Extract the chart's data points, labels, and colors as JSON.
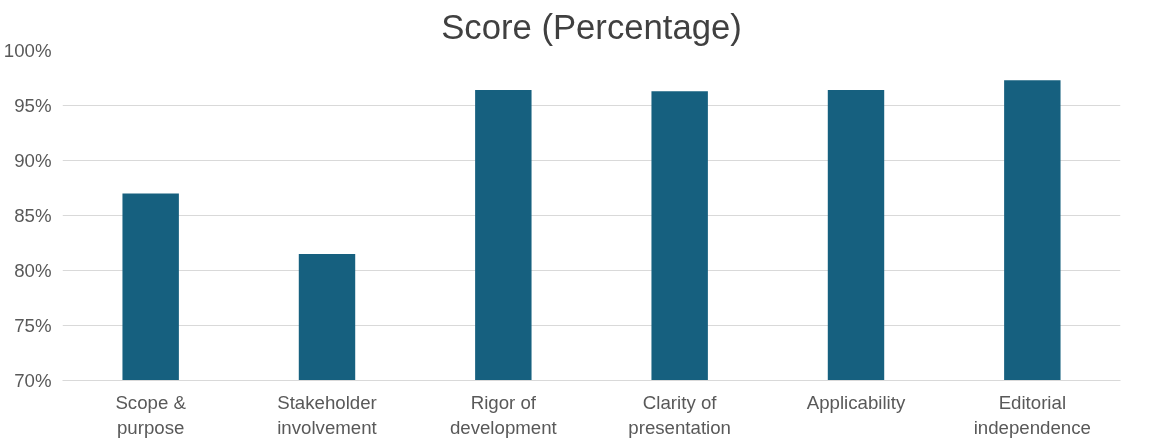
{
  "chart_data": {
    "type": "bar",
    "title": "Score (Percentage)",
    "categories": [
      "Scope & purpose",
      "Stakeholder involvement",
      "Rigor of development",
      "Clarity of presentation",
      "Applicability",
      "Editorial independence"
    ],
    "values": [
      87.0,
      81.5,
      96.4,
      96.3,
      96.4,
      97.3
    ],
    "color": "#16607f",
    "ylim": [
      70,
      100
    ],
    "yticks": [
      {
        "value": 70,
        "label": "70%"
      },
      {
        "value": 75,
        "label": "75%"
      },
      {
        "value": 80,
        "label": "80%"
      },
      {
        "value": 85,
        "label": "85%"
      },
      {
        "value": 90,
        "label": "90%"
      },
      {
        "value": 95,
        "label": "95%"
      },
      {
        "value": 100,
        "label": "100%"
      }
    ],
    "grid": "y"
  }
}
